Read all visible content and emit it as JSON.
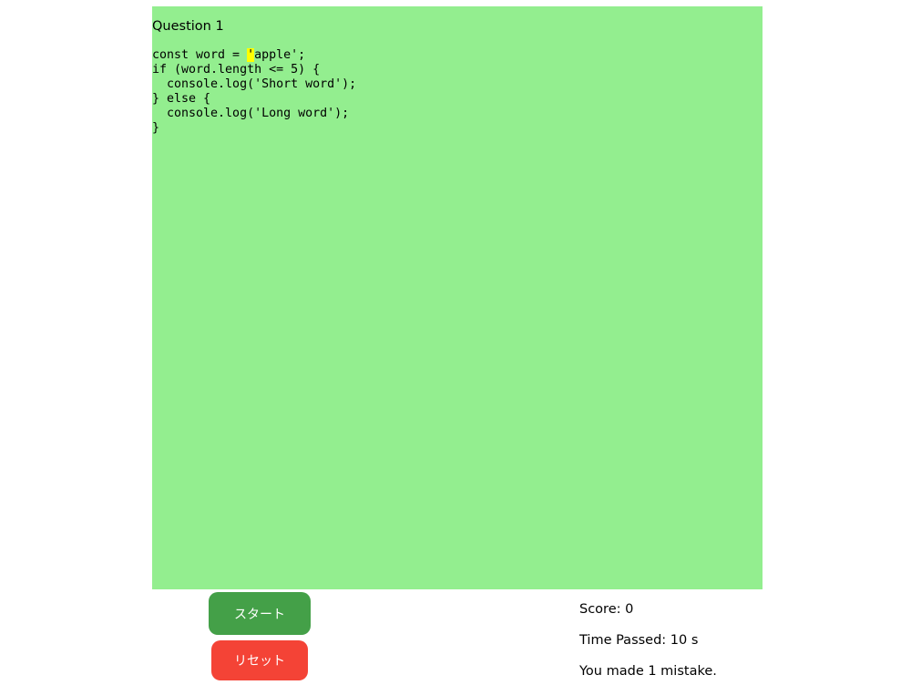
{
  "question": {
    "title": "Question 1",
    "code_first_line": {
      "before": "const word = ",
      "highlighted": "'",
      "after": "apple';"
    },
    "code_rest": "if (word.length <= 5) {\n  console.log('Short word');\n} else {\n  console.log('Long word');\n}",
    "highlight_color": "#ffff00",
    "background_color": "#93ee8f"
  },
  "buttons": {
    "start_label": "スタート",
    "reset_label": "リセット"
  },
  "stats": {
    "score": "Score: 0",
    "time": "Time Passed: 10 s",
    "mistakes": "You made 1 mistake."
  }
}
